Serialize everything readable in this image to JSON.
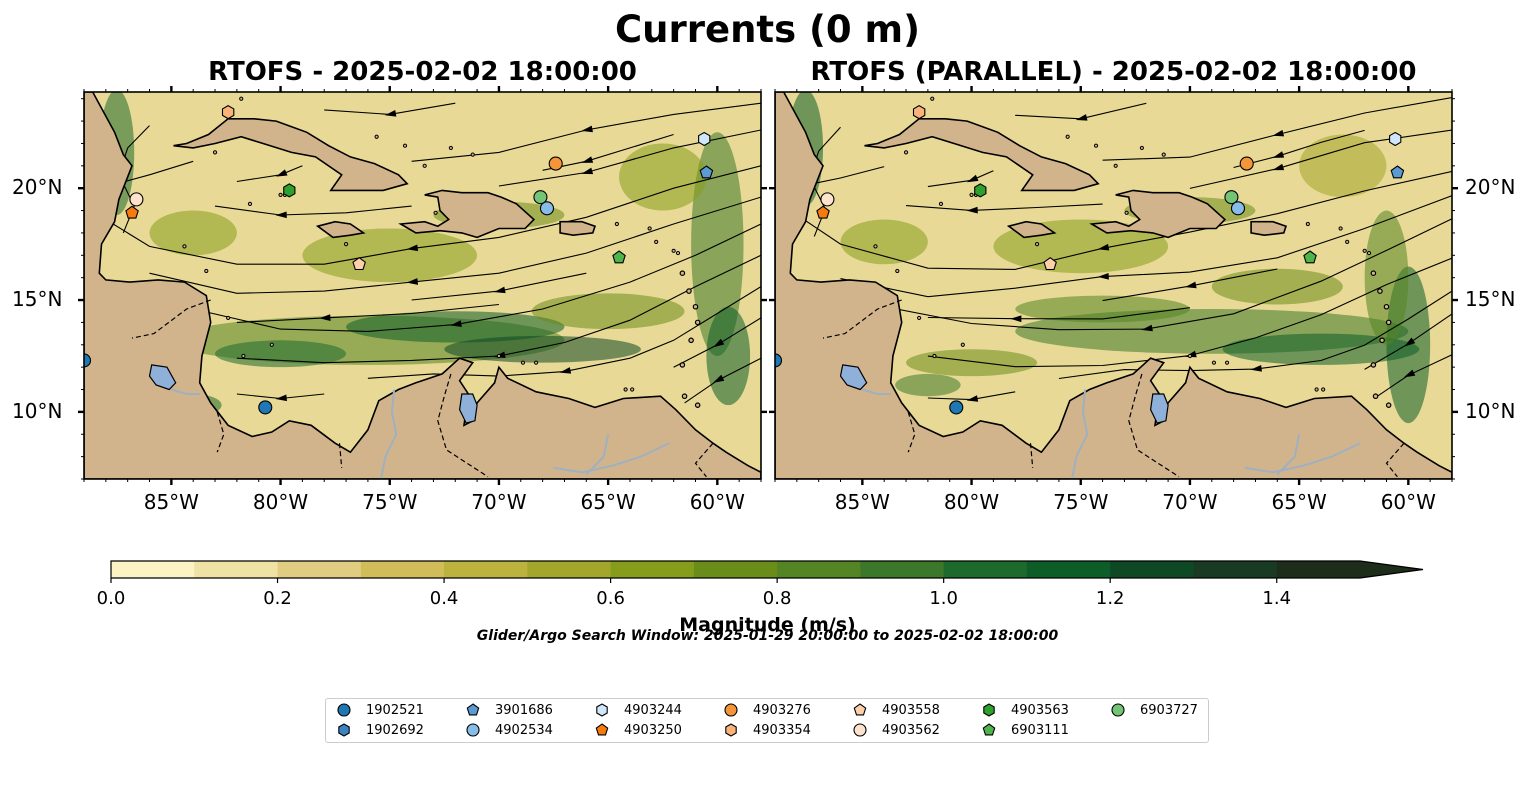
{
  "figure": {
    "title": "Currents (0 m)",
    "search_window_text": "Glider/Argo Search Window: 2025-01-29 20:00:00 to 2025-02-02 18:00:00"
  },
  "panels": [
    {
      "title": "RTOFS - 2025-02-02 18:00:00"
    },
    {
      "title": "RTOFS (PARALLEL) - 2025-02-02 18:00:00"
    }
  ],
  "map_extent": {
    "lon_min": -89,
    "lon_max": -58,
    "lat_min": 7,
    "lat_max": 24.3
  },
  "x_ticks": [
    {
      "lon": -85,
      "label": "85°W"
    },
    {
      "lon": -80,
      "label": "80°W"
    },
    {
      "lon": -75,
      "label": "75°W"
    },
    {
      "lon": -70,
      "label": "70°W"
    },
    {
      "lon": -65,
      "label": "65°W"
    },
    {
      "lon": -60,
      "label": "60°W"
    }
  ],
  "y_ticks": [
    {
      "lat": 10,
      "label": "10°N"
    },
    {
      "lat": 15,
      "label": "15°N"
    },
    {
      "lat": 20,
      "label": "20°N"
    }
  ],
  "colorbar": {
    "label": "Magnitude (m/s)",
    "min": 0.0,
    "max": 1.5,
    "extend": "max",
    "levels": [
      0.0,
      0.1,
      0.2,
      0.3,
      0.4,
      0.5,
      0.6,
      0.7,
      0.8,
      0.9,
      1.0,
      1.1,
      1.2,
      1.3,
      1.4,
      1.5
    ],
    "colors": [
      "#fbf3c4",
      "#eee2a4",
      "#e1cd82",
      "#d1bc5a",
      "#bcb23e",
      "#a2a62a",
      "#859d1b",
      "#6a8d1a",
      "#538525",
      "#3c7829",
      "#1d6a2c",
      "#0c5d28",
      "#0f4825",
      "#193b23",
      "#1e2d1a"
    ],
    "tick_labels": [
      {
        "value": 0.0,
        "label": "0.0"
      },
      {
        "value": 0.2,
        "label": "0.2"
      },
      {
        "value": 0.4,
        "label": "0.4"
      },
      {
        "value": 0.6,
        "label": "0.6"
      },
      {
        "value": 0.8,
        "label": "0.8"
      },
      {
        "value": 1.0,
        "label": "1.0"
      },
      {
        "value": 1.2,
        "label": "1.2"
      },
      {
        "value": 1.4,
        "label": "1.4"
      }
    ]
  },
  "colors": {
    "land": "#d2b48c",
    "lake": "#8fb0d8",
    "river": "#9fb0c0",
    "ocean_base": "#e8da96"
  },
  "platforms": [
    {
      "id": "1902521",
      "marker": "circle",
      "color": "#1f77b4",
      "positions": [
        {
          "lon": -89,
          "lat": 12.3
        },
        {
          "lon": -80.7,
          "lat": 10.2
        }
      ]
    },
    {
      "id": "1902692",
      "marker": "hexagon",
      "color": "#3c84c1",
      "positions": []
    },
    {
      "id": "3901686",
      "marker": "pentagon",
      "color": "#5a9bd4",
      "positions": [
        {
          "lon": -60.5,
          "lat": 20.7
        }
      ]
    },
    {
      "id": "4902534",
      "marker": "circle",
      "color": "#87bce8",
      "positions": [
        {
          "lon": -67.8,
          "lat": 19.1
        }
      ]
    },
    {
      "id": "4903244",
      "marker": "hexagon",
      "color": "#cfe6fb",
      "positions": [
        {
          "lon": -60.6,
          "lat": 22.2
        }
      ]
    },
    {
      "id": "4903250",
      "marker": "pentagon",
      "color": "#f57a10",
      "positions": [
        {
          "lon": -86.8,
          "lat": 18.9
        }
      ]
    },
    {
      "id": "4903276",
      "marker": "circle",
      "color": "#f5953a",
      "positions": [
        {
          "lon": -67.4,
          "lat": 21.1
        }
      ]
    },
    {
      "id": "4903354",
      "marker": "hexagon",
      "color": "#fbb37a",
      "positions": [
        {
          "lon": -82.4,
          "lat": 23.4
        }
      ]
    },
    {
      "id": "4903558",
      "marker": "pentagon",
      "color": "#fcd0a8",
      "positions": [
        {
          "lon": -76.4,
          "lat": 16.6
        }
      ]
    },
    {
      "id": "4903562",
      "marker": "circle",
      "color": "#fde3cd",
      "positions": [
        {
          "lon": -86.6,
          "lat": 19.5
        }
      ]
    },
    {
      "id": "4903563",
      "marker": "hexagon",
      "color": "#2ea02c",
      "positions": [
        {
          "lon": -79.6,
          "lat": 19.9
        }
      ]
    },
    {
      "id": "6903111",
      "marker": "pentagon",
      "color": "#4fb44a",
      "positions": [
        {
          "lon": -64.5,
          "lat": 16.9
        }
      ]
    },
    {
      "id": "6903727",
      "marker": "circle",
      "color": "#74c476",
      "positions": [
        {
          "lon": -68.1,
          "lat": 19.6
        }
      ]
    }
  ]
}
